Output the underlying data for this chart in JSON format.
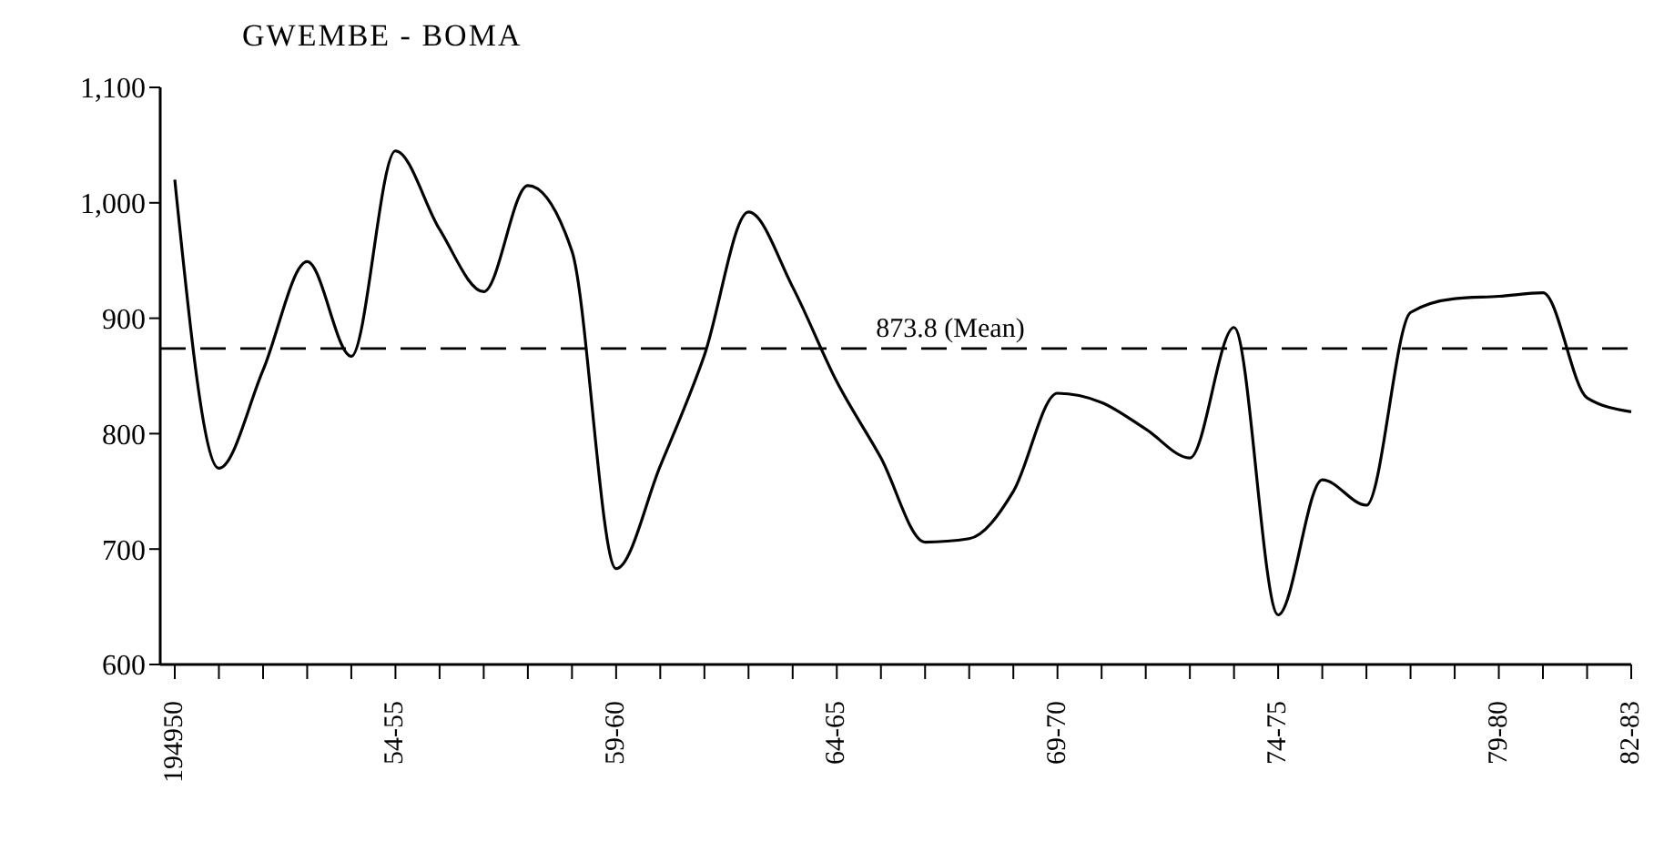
{
  "chart_data": {
    "type": "line",
    "title": "GWEMBE - BOMA",
    "categories": [
      "194950",
      null,
      null,
      null,
      null,
      "54-55",
      null,
      null,
      null,
      null,
      "59-60",
      null,
      null,
      null,
      null,
      "64-65",
      null,
      null,
      null,
      null,
      "69-70",
      null,
      null,
      null,
      null,
      "74-75",
      null,
      null,
      null,
      null,
      "79-80",
      null,
      null,
      "82-83"
    ],
    "series": [
      {
        "color": "#000000",
        "values": [
          1020,
          770,
          855,
          949,
          867,
          1045,
          977,
          923,
          1015,
          958,
          683,
          772,
          868,
          992,
          927,
          845,
          779,
          706,
          709,
          750,
          835,
          827,
          804,
          779,
          892,
          643,
          760,
          738,
          905,
          917,
          919,
          922,
          831,
          819
        ]
      }
    ],
    "ylim": [
      600,
      1100
    ],
    "yticks": [
      600,
      700,
      800,
      900,
      {
        "value": 1000,
        "label": "1,000"
      },
      {
        "value": 1100,
        "label": "1,100"
      }
    ],
    "ref_lines": [
      {
        "axis": "y",
        "value": 873.8,
        "label": "873.8 (Mean)",
        "line_style": "dashed",
        "color": "#000000"
      }
    ],
    "grid": false,
    "legend": false,
    "marker": "none",
    "line_style": "solid"
  }
}
